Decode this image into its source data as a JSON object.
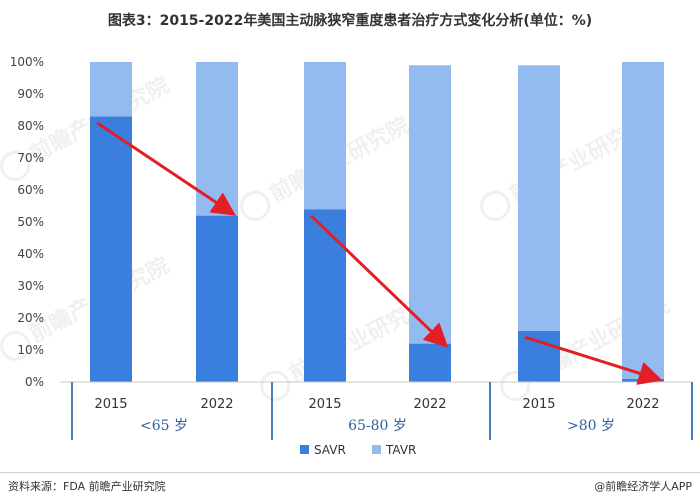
{
  "title": "图表3：2015-2022年美国主动脉狭窄重度患者治疗方式变化分析(单位：%)",
  "source": "资料来源：FDA 前瞻产业研究院",
  "brand": "@前瞻经济学人APP",
  "watermark": "前瞻产业研究院",
  "colors": {
    "SAVR": "#3a7fdd",
    "TAVR": "#94bbf0",
    "arrow": "#e31e24",
    "axis": "#c8c8c8",
    "group_line": "#4a7ab8"
  },
  "chart_data": {
    "type": "bar",
    "stacked": true,
    "groups": [
      {
        "label": "<65 岁",
        "years": [
          "2015",
          "2022"
        ]
      },
      {
        "label": "65-80 岁",
        "years": [
          "2015",
          "2022"
        ]
      },
      {
        "label": ">80 岁",
        "years": [
          "2015",
          "2022"
        ]
      }
    ],
    "categories": [
      "2015",
      "2022",
      "2015",
      "2022",
      "2015",
      "2022"
    ],
    "series": [
      {
        "name": "SAVR",
        "values": [
          83,
          52,
          54,
          12,
          16,
          1
        ]
      },
      {
        "name": "TAVR",
        "values": [
          17,
          48,
          46,
          87,
          83,
          99
        ]
      }
    ],
    "yticks": [
      "0%",
      "10%",
      "20%",
      "30%",
      "40%",
      "50%",
      "60%",
      "70%",
      "80%",
      "90%",
      "100%"
    ],
    "ylim": [
      0,
      100
    ],
    "legend": {
      "position": "bottom",
      "items": [
        "SAVR",
        "TAVR"
      ]
    },
    "annotations": [
      {
        "type": "arrow",
        "from_bar": 0,
        "to_bar": 1,
        "from_value": 81,
        "to_value": 53
      },
      {
        "type": "arrow",
        "from_bar": 2,
        "to_bar": 3,
        "from_value": 52,
        "to_value": 12
      },
      {
        "type": "arrow",
        "from_bar": 4,
        "to_bar": 5,
        "from_value": 14,
        "to_value": 1
      }
    ]
  }
}
